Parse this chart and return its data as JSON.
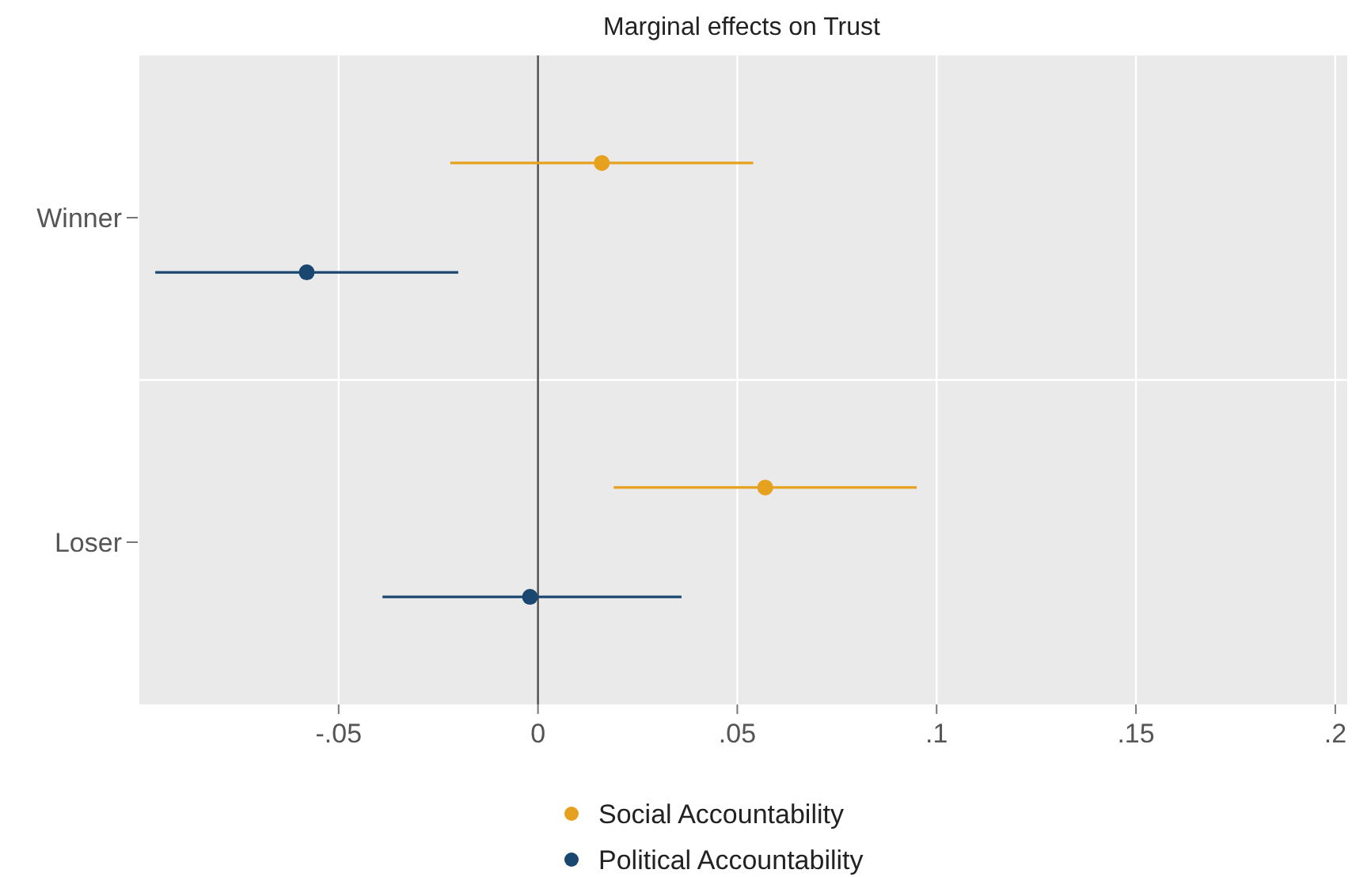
{
  "chart_data": {
    "type": "scatter",
    "orientation": "horizontal",
    "title": "Marginal effects on Trust",
    "categories": [
      "Winner",
      "Loser"
    ],
    "series": [
      {
        "name": "Social Accountability",
        "color": "#e6a11e",
        "values": [
          0.016,
          0.057
        ],
        "errors": [
          [
            -0.022,
            0.054
          ],
          [
            0.019,
            0.095
          ]
        ]
      },
      {
        "name": "Political Accountability",
        "color": "#1a476f",
        "values": [
          -0.058,
          -0.002
        ],
        "errors": [
          [
            -0.096,
            -0.02
          ],
          [
            -0.039,
            0.036
          ]
        ]
      }
    ],
    "xlim": [
      -0.1,
      0.203
    ],
    "xticks": [
      {
        "value": -0.05,
        "label": "-.05"
      },
      0,
      {
        "value": 0.05,
        "label": ".05"
      },
      {
        "value": 0.1,
        "label": ".1"
      },
      {
        "value": 0.15,
        "label": ".15"
      },
      {
        "value": 0.2,
        "label": ".2"
      }
    ],
    "ref_lines": [
      {
        "axis": "x",
        "value": 0,
        "color": "#4d4d4d"
      }
    ],
    "grid": true,
    "legend": "bottom",
    "marker": "circle",
    "line_style": "solid"
  }
}
